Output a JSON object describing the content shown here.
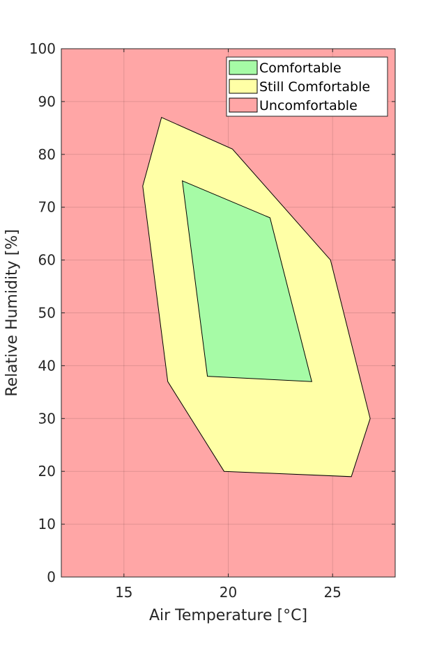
{
  "chart_data": {
    "type": "area",
    "xlabel": "Air Temperature [°C]",
    "ylabel": "Relative Humidity [%]",
    "xlim": [
      12,
      28
    ],
    "ylim": [
      0,
      100
    ],
    "xticks": [
      15,
      20,
      25
    ],
    "yticks": [
      0,
      10,
      20,
      30,
      40,
      50,
      60,
      70,
      80,
      90,
      100
    ],
    "grid": true,
    "legend_position": "top-right",
    "series": [
      {
        "name": "Comfortable",
        "color": "#a6fba6",
        "polygon": [
          [
            17.8,
            75
          ],
          [
            22,
            68
          ],
          [
            24,
            37
          ],
          [
            19,
            38
          ]
        ]
      },
      {
        "name": "Still Comfortable",
        "color": "#ffffa6",
        "polygon": [
          [
            16.8,
            87
          ],
          [
            20.2,
            81
          ],
          [
            24.9,
            60
          ],
          [
            26.8,
            30
          ],
          [
            25.9,
            19
          ],
          [
            19.8,
            20
          ],
          [
            17.1,
            37
          ],
          [
            15.9,
            74
          ]
        ]
      },
      {
        "name": "Uncomfortable",
        "color": "#ffa6a6",
        "polygon": "background"
      }
    ]
  }
}
